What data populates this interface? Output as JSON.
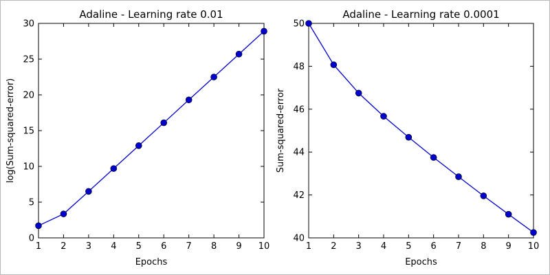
{
  "chart_data": [
    {
      "type": "line",
      "title": "Adaline - Learning rate 0.01",
      "xlabel": "Epochs",
      "ylabel": "log(Sum-squared-error)",
      "x": [
        1,
        2,
        3,
        4,
        5,
        6,
        7,
        8,
        9,
        10
      ],
      "series": [
        {
          "values": [
            1.7,
            3.35,
            6.5,
            9.7,
            12.9,
            16.1,
            19.3,
            22.5,
            25.7,
            28.9
          ]
        }
      ],
      "xlim": [
        1,
        10
      ],
      "ylim": [
        0,
        30
      ],
      "xticks": [
        1,
        2,
        3,
        4,
        5,
        6,
        7,
        8,
        9,
        10
      ],
      "yticks": [
        0,
        5,
        10,
        15,
        20,
        25,
        30
      ],
      "color": "#0000cc",
      "marker": "circle",
      "grid": false
    },
    {
      "type": "line",
      "title": "Adaline - Learning rate 0.0001",
      "xlabel": "Epochs",
      "ylabel": "Sum-squared-error",
      "x": [
        1,
        2,
        3,
        4,
        5,
        6,
        7,
        8,
        9,
        10
      ],
      "series": [
        {
          "values": [
            50.0,
            48.07,
            46.75,
            45.67,
            44.69,
            43.75,
            42.85,
            41.96,
            41.1,
            40.25
          ]
        }
      ],
      "xlim": [
        1,
        10
      ],
      "ylim": [
        40,
        50
      ],
      "xticks": [
        1,
        2,
        3,
        4,
        5,
        6,
        7,
        8,
        9,
        10
      ],
      "yticks": [
        40,
        42,
        44,
        46,
        48,
        50
      ],
      "color": "#0000cc",
      "marker": "circle",
      "grid": false
    }
  ]
}
